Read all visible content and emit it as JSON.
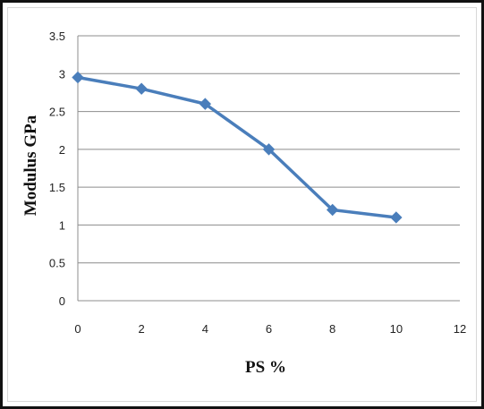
{
  "chart_data": {
    "type": "line",
    "xlabel": "PS %",
    "ylabel": "Modulus GPa",
    "xlim": [
      0,
      12
    ],
    "ylim": [
      0,
      3.5
    ],
    "xticks": [
      "0",
      "2",
      "4",
      "6",
      "8",
      "10",
      "12"
    ],
    "yticks": [
      "0",
      "0.5",
      "1",
      "1.5",
      "2",
      "2.5",
      "3",
      "3.5"
    ],
    "grid": "horizontal",
    "legend": "none",
    "marker": "diamond",
    "color": "#4a7ebb",
    "x": [
      0,
      2,
      4,
      6,
      8,
      10
    ],
    "series": [
      {
        "values": [
          2.95,
          2.8,
          2.6,
          2.0,
          1.2,
          1.1
        ]
      }
    ]
  }
}
